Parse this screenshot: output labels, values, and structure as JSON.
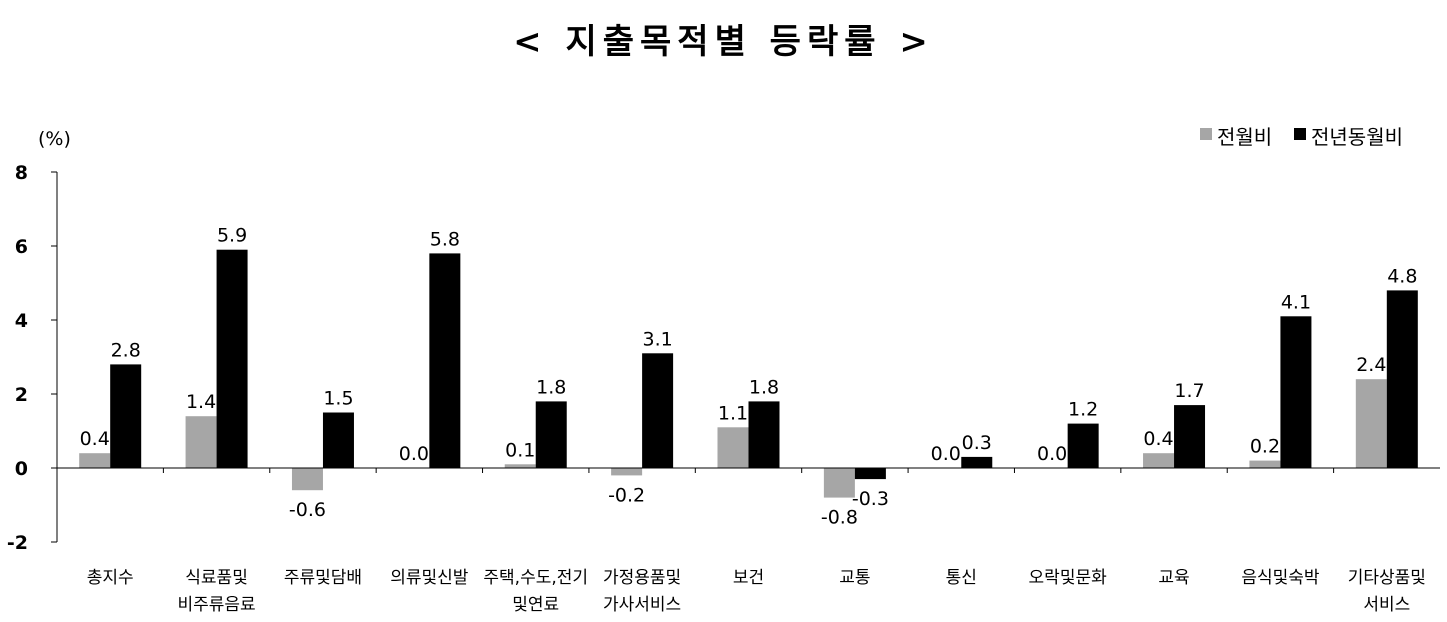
{
  "chart_data": {
    "type": "bar",
    "title": "< 지출목적별 등락률 >",
    "unit_label": "(%)",
    "ylim": [
      -2,
      8
    ],
    "yticks": [
      "8",
      "6",
      "4",
      "2",
      "0",
      "-2"
    ],
    "ytick_values": [
      8,
      6,
      4,
      2,
      0,
      -2
    ],
    "grid": false,
    "legend_position": "top-right",
    "categories": [
      [
        "총지수"
      ],
      [
        "식료품및",
        "비주류음료"
      ],
      [
        "주류및담배"
      ],
      [
        "의류및신발"
      ],
      [
        "주택,수도,전기",
        "및연료"
      ],
      [
        "가정용품및",
        "가사서비스"
      ],
      [
        "보건"
      ],
      [
        "교통"
      ],
      [
        "통신"
      ],
      [
        "오락및문화"
      ],
      [
        "교육"
      ],
      [
        "음식및숙박"
      ],
      [
        "기타상품및",
        "서비스"
      ]
    ],
    "series": [
      {
        "name": "전월비",
        "color": "#a6a6a6",
        "values": [
          0.4,
          1.4,
          -0.6,
          0.0,
          0.1,
          -0.2,
          1.1,
          -0.8,
          0.0,
          0.0,
          0.4,
          0.2,
          2.4
        ],
        "labels": [
          "0.4",
          "1.4",
          "-0.6",
          "0.0",
          "0.1",
          "-0.2",
          "1.1",
          "-0.8",
          "0.0",
          "0.0",
          "0.4",
          "0.2",
          "2.4"
        ]
      },
      {
        "name": "전년동월비",
        "color": "#000000",
        "values": [
          2.8,
          5.9,
          1.5,
          5.8,
          1.8,
          3.1,
          1.8,
          -0.3,
          0.3,
          1.2,
          1.7,
          4.1,
          4.8
        ],
        "labels": [
          "2.8",
          "5.9",
          "1.5",
          "5.8",
          "1.8",
          "3.1",
          "1.8",
          "-0.3",
          "0.3",
          "1.2",
          "1.7",
          "4.1",
          "4.8"
        ]
      }
    ]
  }
}
